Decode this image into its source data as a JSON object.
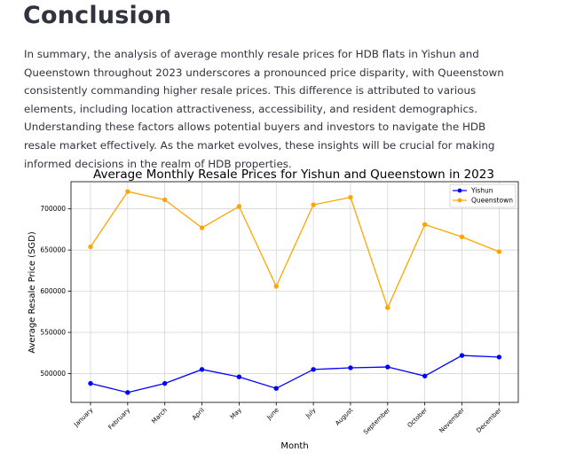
{
  "page": {
    "heading": "Conclusion",
    "paragraph": "In summary, the analysis of average monthly resale prices for HDB flats in Yishun and Queenstown throughout 2023 underscores a pronounced price disparity, with Queenstown consistently commanding higher resale prices. This difference is attributed to various elements, including location attractiveness, accessibility, and resident demographics. Understanding these factors allows potential buyers and investors to navigate the HDB resale market effectively. As the market evolves, these insights will be crucial for making informed decisions in the realm of HDB properties."
  },
  "chart_data": {
    "type": "line",
    "title": "Average Monthly Resale Prices for Yishun and Queenstown in 2023",
    "xlabel": "Month",
    "ylabel": "Average Resale Price (SGD)",
    "categories": [
      "January",
      "February",
      "March",
      "April",
      "May",
      "June",
      "July",
      "August",
      "September",
      "October",
      "November",
      "December"
    ],
    "series": [
      {
        "name": "Yishun",
        "color": "#0000ff",
        "values": [
          488000,
          477000,
          488000,
          505000,
          496000,
          482000,
          505000,
          507000,
          508000,
          497000,
          522000,
          520000
        ]
      },
      {
        "name": "Queenstown",
        "color": "#ffa500",
        "values": [
          654000,
          721000,
          711000,
          677000,
          703000,
          606000,
          705000,
          714000,
          580000,
          681000,
          666000,
          648000
        ]
      }
    ],
    "yticks": [
      500000,
      550000,
      600000,
      650000,
      700000
    ],
    "ytick_labels": [
      "500000",
      "550000",
      "600000",
      "650000",
      "700000"
    ],
    "ylim": [
      465000,
      733000
    ],
    "grid": true,
    "legend_position": "top-right"
  }
}
